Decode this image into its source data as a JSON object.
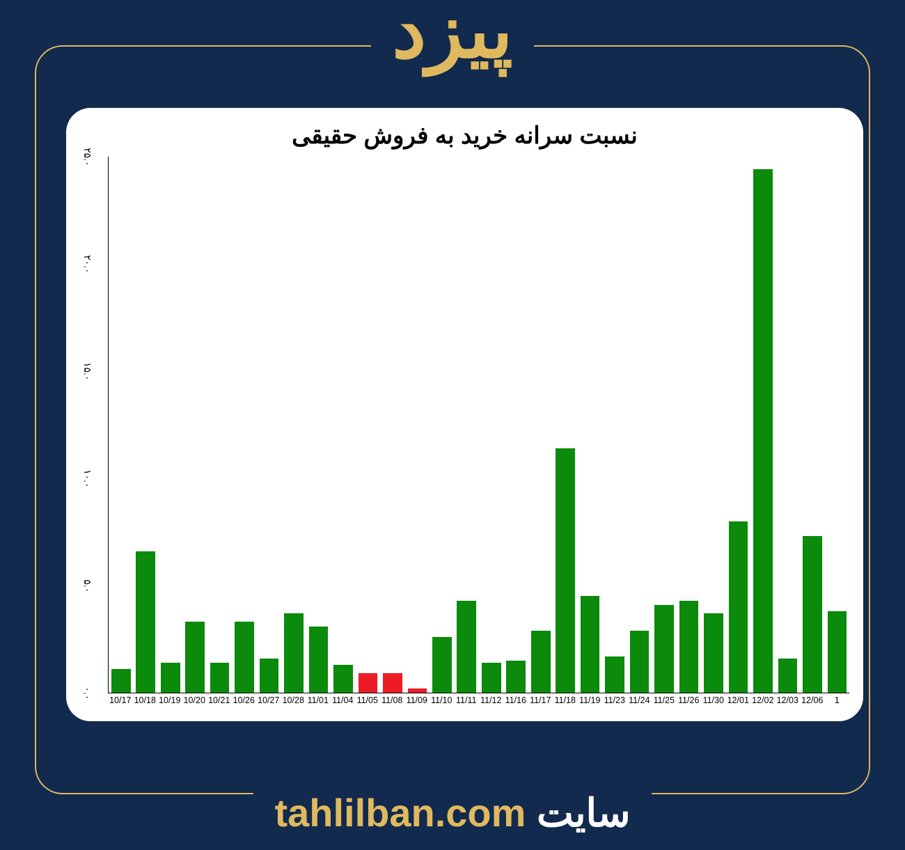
{
  "header_symbol": "پیزد",
  "footer_word": "سایت",
  "footer_url": "tahlilban.com",
  "colors": {
    "page_bg": "#112a4e",
    "frame_border": "#e0b95f",
    "accent_text": "#e0b95f",
    "card_bg": "#ffffff",
    "title_text": "#000000",
    "axis_text": "#000000",
    "bar_up": "#0b8a0b",
    "bar_down": "#ed1c24"
  },
  "chart": {
    "type": "bar",
    "title": "نسبت سرانه خرید به فروش حقیقی",
    "title_fontsize": 34,
    "axis_fontsize": 14,
    "x_label_fontsize": 12.5,
    "ylim": [
      0,
      25
    ],
    "ytick_step": 5,
    "yticks_labels": [
      "۰.۰",
      "۵.۰",
      "۱۰.۰",
      "۱۵.۰",
      "۲۰.۰",
      "۲۵.۰"
    ],
    "bar_width_ratio": 0.78,
    "background_color": "#ffffff",
    "categories": [
      "10/17",
      "10/18",
      "10/19",
      "10/20",
      "10/21",
      "10/26",
      "10/27",
      "10/28",
      "11/01",
      "11/04",
      "11/05",
      "11/08",
      "11/09",
      "11/10",
      "11/11",
      "11/12",
      "11/16",
      "11/17",
      "11/18",
      "11/19",
      "11/23",
      "11/24",
      "11/25",
      "11/26",
      "11/30",
      "12/01",
      "12/02",
      "12/03",
      "12/06",
      "1"
    ],
    "values": [
      1.1,
      6.6,
      1.4,
      3.3,
      1.4,
      3.3,
      1.6,
      3.7,
      3.1,
      1.3,
      0.9,
      0.9,
      0.2,
      2.6,
      4.3,
      1.4,
      1.5,
      2.9,
      11.4,
      4.5,
      1.7,
      2.9,
      4.1,
      4.3,
      3.7,
      8.0,
      24.4,
      1.6,
      7.3,
      3.8
    ],
    "bar_colors": [
      "#0b8a0b",
      "#0b8a0b",
      "#0b8a0b",
      "#0b8a0b",
      "#0b8a0b",
      "#0b8a0b",
      "#0b8a0b",
      "#0b8a0b",
      "#0b8a0b",
      "#0b8a0b",
      "#ed1c24",
      "#ed1c24",
      "#ed1c24",
      "#0b8a0b",
      "#0b8a0b",
      "#0b8a0b",
      "#0b8a0b",
      "#0b8a0b",
      "#0b8a0b",
      "#0b8a0b",
      "#0b8a0b",
      "#0b8a0b",
      "#0b8a0b",
      "#0b8a0b",
      "#0b8a0b",
      "#0b8a0b",
      "#0b8a0b",
      "#0b8a0b",
      "#0b8a0b",
      "#0b8a0b"
    ]
  }
}
